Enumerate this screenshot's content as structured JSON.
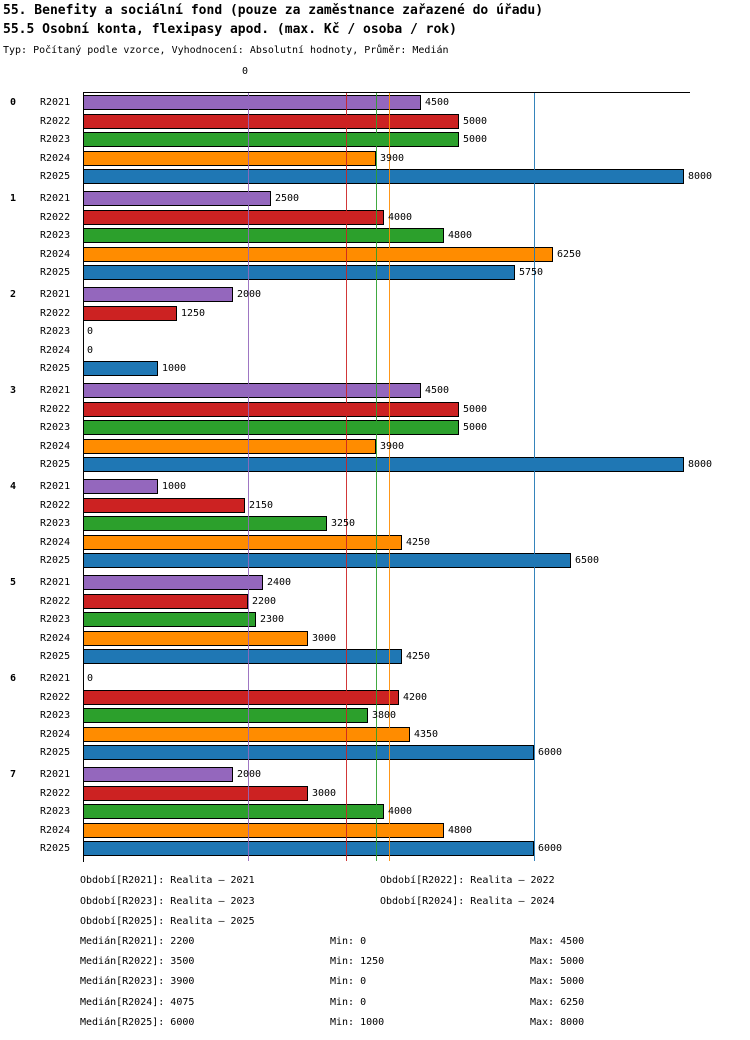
{
  "header": {
    "title1": "55. Benefity a sociální fond (pouze za zaměstnance zařazené do úřadu)",
    "title2": "55.5 Osobní konta, flexipasy apod. (max. Kč / osoba / rok)",
    "meta": "Typ: Počítaný podle vzorce, Vyhodnocení: Absolutní hodnoty, Průměr: Medián"
  },
  "axis": {
    "zero_label": "0",
    "xmin": 0,
    "xmax": 8000
  },
  "chart_data": {
    "type": "bar",
    "orientation": "horizontal",
    "title": "55.5 Osobní konta, flexipasy apod. (max. Kč / osoba / rok)",
    "xlim": [
      0,
      8000
    ],
    "categories": [
      "0",
      "1",
      "2",
      "3",
      "4",
      "5",
      "6",
      "7"
    ],
    "series": [
      {
        "name": "R2021",
        "color": "#9467bd",
        "values": [
          4500,
          2500,
          2000,
          4500,
          1000,
          2400,
          0,
          2000
        ]
      },
      {
        "name": "R2022",
        "color": "#cc2222",
        "values": [
          5000,
          4000,
          1250,
          5000,
          2150,
          2200,
          4200,
          3000
        ]
      },
      {
        "name": "R2023",
        "color": "#2ca02c",
        "values": [
          5000,
          4800,
          0,
          5000,
          3250,
          2300,
          3800,
          4000
        ]
      },
      {
        "name": "R2024",
        "color": "#ff8c00",
        "values": [
          3900,
          6250,
          0,
          3900,
          4250,
          3000,
          4350,
          4800
        ]
      },
      {
        "name": "R2025",
        "color": "#1f77b4",
        "values": [
          8000,
          5750,
          1000,
          8000,
          6500,
          4250,
          6000,
          6000
        ]
      }
    ],
    "reference_lines": [
      {
        "series": "R2021",
        "label": "Medián R2021",
        "value": 2200,
        "color": "#9467bd"
      },
      {
        "series": "R2022",
        "label": "Medián R2022",
        "value": 3500,
        "color": "#cc2222"
      },
      {
        "series": "R2023",
        "label": "Medián R2023",
        "value": 3900,
        "color": "#2ca02c"
      },
      {
        "series": "R2024",
        "label": "Medián R2024",
        "value": 4075,
        "color": "#ff8c00"
      },
      {
        "series": "R2025",
        "label": "Medián R2025",
        "value": 6000,
        "color": "#1f77b4"
      }
    ]
  },
  "legend": {
    "periods": [
      "Období[R2021]: Realita – 2021",
      "Období[R2022]: Realita – 2022",
      "Období[R2023]: Realita – 2023",
      "Období[R2024]: Realita – 2024",
      "Období[R2025]: Realita – 2025"
    ],
    "stats": [
      {
        "median": "Medián[R2021]: 2200",
        "min": "Min: 0",
        "max": "Max: 4500"
      },
      {
        "median": "Medián[R2022]: 3500",
        "min": "Min: 1250",
        "max": "Max: 5000"
      },
      {
        "median": "Medián[R2023]: 3900",
        "min": "Min: 0",
        "max": "Max: 5000"
      },
      {
        "median": "Medián[R2024]: 4075",
        "min": "Min: 0",
        "max": "Max: 6250"
      },
      {
        "median": "Medián[R2025]: 6000",
        "min": "Min: 1000",
        "max": "Max: 8000"
      }
    ]
  }
}
